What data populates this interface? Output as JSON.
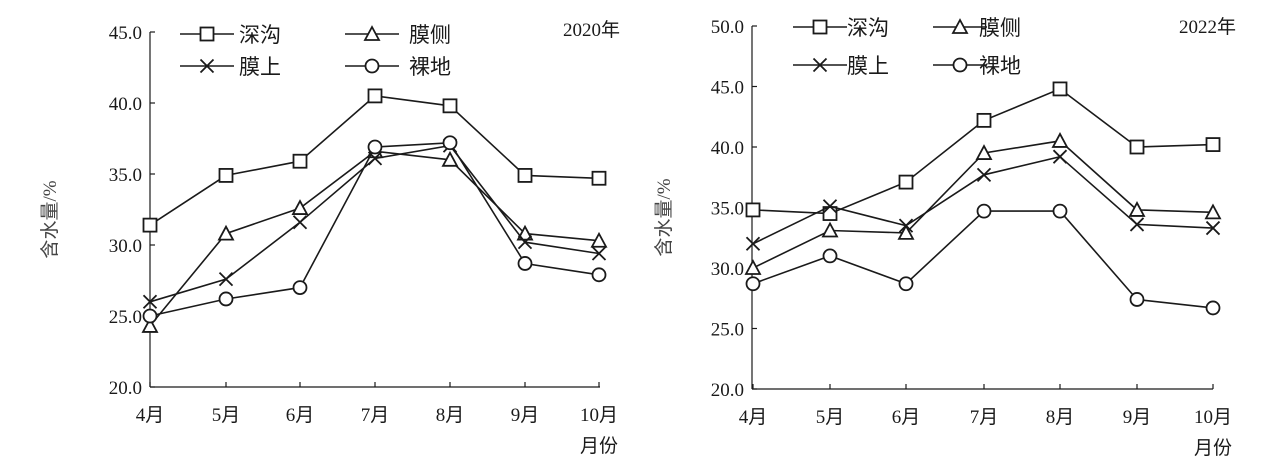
{
  "chart_data": [
    {
      "type": "line",
      "title": "2020年",
      "xlabel": "月份",
      "ylabel": "含水量/%",
      "categories": [
        "4月",
        "5月",
        "6月",
        "7月",
        "8月",
        "9月",
        "10月"
      ],
      "ylim": [
        20,
        45
      ],
      "yticks": [
        "20.0",
        "25.0",
        "30.0",
        "35.0",
        "40.0",
        "45.0"
      ],
      "legend_position": "top-center",
      "series": [
        {
          "name": "深沟",
          "marker": "square",
          "values": [
            31.4,
            34.9,
            35.9,
            40.5,
            39.8,
            34.9,
            34.7
          ]
        },
        {
          "name": "膜侧",
          "marker": "triangle",
          "values": [
            24.3,
            30.8,
            32.6,
            36.6,
            36.0,
            30.8,
            30.3
          ]
        },
        {
          "name": "膜上",
          "marker": "x",
          "values": [
            26.0,
            27.6,
            31.6,
            36.1,
            37.0,
            30.2,
            29.4
          ]
        },
        {
          "name": "裸地",
          "marker": "circle",
          "values": [
            25.0,
            26.2,
            27.0,
            36.9,
            37.2,
            28.7,
            27.9
          ]
        }
      ]
    },
    {
      "type": "line",
      "title": "2022年",
      "xlabel": "月份",
      "ylabel": "含水量/%",
      "categories": [
        "4月",
        "5月",
        "6月",
        "7月",
        "8月",
        "9月",
        "10月"
      ],
      "ylim": [
        20,
        50
      ],
      "yticks": [
        "20.0",
        "25.0",
        "30.0",
        "35.0",
        "40.0",
        "45.0",
        "50.0"
      ],
      "legend_position": "top-center",
      "series": [
        {
          "name": "深沟",
          "marker": "square",
          "values": [
            34.8,
            34.5,
            37.1,
            42.2,
            44.8,
            40.0,
            40.2
          ]
        },
        {
          "name": "膜侧",
          "marker": "triangle",
          "values": [
            30.0,
            33.1,
            32.9,
            39.5,
            40.5,
            34.8,
            34.6
          ]
        },
        {
          "name": "膜上",
          "marker": "x",
          "values": [
            32.0,
            35.1,
            33.5,
            37.7,
            39.2,
            33.6,
            33.3
          ]
        },
        {
          "name": "裸地",
          "marker": "circle",
          "values": [
            28.7,
            31.0,
            28.7,
            34.7,
            34.7,
            27.4,
            26.7
          ]
        }
      ]
    }
  ]
}
